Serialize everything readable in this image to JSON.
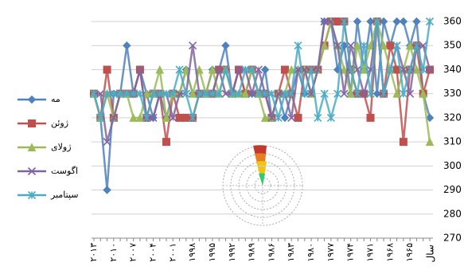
{
  "chart_data": {
    "type": "line",
    "x_label": "سال",
    "categories": [
      "۲۰۱۳",
      null,
      null,
      "۲۰۱۰",
      null,
      null,
      "۲۰۰۷",
      null,
      null,
      "۲۰۰۴",
      null,
      null,
      "۲۰۰۱",
      null,
      null,
      "۱۹۹۸",
      null,
      null,
      "۱۹۹۵",
      null,
      null,
      "۱۹۹۲",
      null,
      null,
      "۱۹۸۹",
      null,
      null,
      "۱۹۸۶",
      null,
      null,
      "۱۹۸۳",
      null,
      null,
      "۱۹۸۰",
      null,
      null,
      "۱۹۷۷",
      null,
      null,
      "۱۹۷۴",
      null,
      null,
      "۱۹۷۱",
      null,
      null,
      "۱۹۶۸",
      null,
      null,
      "۱۹۶۵",
      null,
      null,
      null
    ],
    "series": [
      {
        "name": "مه",
        "color": "#4f81bd",
        "marker": "diamond",
        "values": [
          330,
          320,
          290,
          330,
          330,
          350,
          330,
          340,
          330,
          320,
          330,
          320,
          330,
          330,
          340,
          330,
          330,
          330,
          340,
          340,
          350,
          330,
          340,
          330,
          330,
          330,
          340,
          320,
          330,
          320,
          330,
          340,
          330,
          330,
          340,
          360,
          360,
          340,
          350,
          330,
          360,
          340,
          360,
          330,
          360,
          350,
          360,
          360,
          350,
          360,
          330,
          320
        ]
      },
      {
        "name": "ژوئن",
        "color": "#c0504d",
        "marker": "square",
        "values": [
          330,
          320,
          340,
          320,
          330,
          330,
          330,
          340,
          320,
          330,
          330,
          310,
          330,
          320,
          320,
          320,
          330,
          330,
          330,
          340,
          340,
          330,
          340,
          330,
          340,
          330,
          330,
          320,
          330,
          340,
          330,
          320,
          340,
          340,
          340,
          350,
          360,
          360,
          360,
          340,
          330,
          330,
          320,
          360,
          330,
          350,
          340,
          310,
          340,
          350,
          330,
          340
        ]
      },
      {
        "name": "ژولای",
        "color": "#9bbb59",
        "marker": "triangle",
        "values": [
          330,
          320,
          330,
          320,
          330,
          330,
          320,
          320,
          330,
          330,
          340,
          320,
          330,
          330,
          340,
          330,
          340,
          330,
          340,
          330,
          340,
          330,
          330,
          330,
          340,
          330,
          320,
          320,
          330,
          330,
          340,
          340,
          340,
          330,
          340,
          350,
          360,
          350,
          340,
          330,
          350,
          340,
          350,
          360,
          350,
          340,
          330,
          340,
          350,
          340,
          330,
          310
        ]
      },
      {
        "name": "اگوست",
        "color": "#8064a2",
        "marker": "x",
        "values": [
          330,
          330,
          310,
          320,
          330,
          330,
          330,
          340,
          320,
          320,
          330,
          330,
          320,
          330,
          330,
          350,
          330,
          330,
          330,
          340,
          330,
          330,
          340,
          340,
          330,
          340,
          330,
          320,
          330,
          330,
          320,
          340,
          340,
          330,
          340,
          360,
          360,
          350,
          330,
          350,
          340,
          330,
          340,
          360,
          330,
          340,
          350,
          340,
          330,
          350,
          350,
          340
        ]
      },
      {
        "name": "سپتامبر",
        "color": "#4bacc6",
        "marker": "star",
        "values": [
          330,
          320,
          330,
          330,
          330,
          330,
          330,
          330,
          320,
          330,
          330,
          330,
          330,
          340,
          330,
          320,
          330,
          330,
          330,
          330,
          340,
          330,
          330,
          340,
          340,
          330,
          330,
          330,
          320,
          330,
          330,
          350,
          330,
          340,
          320,
          330,
          320,
          330,
          360,
          340,
          330,
          350,
          330,
          360,
          330,
          340,
          350,
          330,
          340,
          350,
          340,
          360
        ]
      }
    ],
    "ylim": [
      270,
      360
    ],
    "yticks": [
      270,
      280,
      290,
      300,
      310,
      320,
      330,
      340,
      350,
      360
    ],
    "grid": true,
    "legend": "left"
  }
}
